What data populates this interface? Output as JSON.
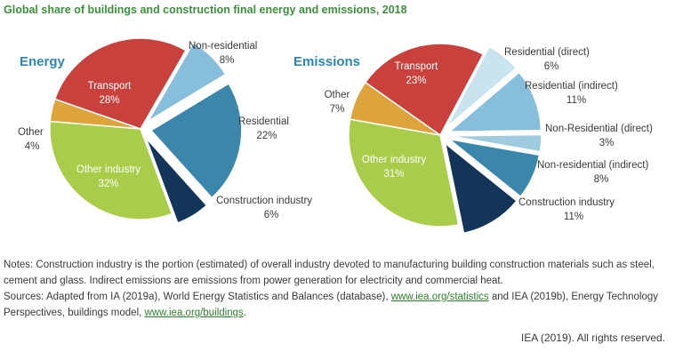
{
  "title": "Global share of buildings and construction final energy and emissions, 2018",
  "chart_data": [
    {
      "type": "pie",
      "title": "Energy",
      "slices": [
        {
          "label": "Non-residential",
          "value": 8,
          "pct": "8%",
          "color": "#86bedc",
          "exploded": true
        },
        {
          "label": "Residential",
          "value": 22,
          "pct": "22%",
          "color": "#3a87ab",
          "exploded": true
        },
        {
          "label": "Construction industry",
          "value": 6,
          "pct": "6%",
          "color": "#13355a",
          "exploded": true
        },
        {
          "label": "Other industry",
          "value": 32,
          "pct": "32%",
          "color": "#a9cc4a",
          "exploded": false
        },
        {
          "label": "Other",
          "value": 4,
          "pct": "4%",
          "color": "#dea43c",
          "exploded": false
        },
        {
          "label": "Transport",
          "value": 28,
          "pct": "28%",
          "color": "#c8413c",
          "exploded": false
        }
      ]
    },
    {
      "type": "pie",
      "title": "Emissions",
      "slices": [
        {
          "label": "Residential (direct)",
          "value": 6,
          "pct": "6%",
          "color": "#c9e3ef",
          "exploded": true
        },
        {
          "label": "Residential (indirect)",
          "value": 11,
          "pct": "11%",
          "color": "#86bedc",
          "exploded": true
        },
        {
          "label": "Non-Residential (direct)",
          "value": 3,
          "pct": "3%",
          "color": "#9fcbdf",
          "exploded": true
        },
        {
          "label": "Non-residential (indirect)",
          "value": 8,
          "pct": "8%",
          "color": "#3a87ab",
          "exploded": true
        },
        {
          "label": "Construction industry",
          "value": 11,
          "pct": "11%",
          "color": "#13355a",
          "exploded": true
        },
        {
          "label": "Other industry",
          "value": 31,
          "pct": "31%",
          "color": "#a9cc4a",
          "exploded": false
        },
        {
          "label": "Other",
          "value": 7,
          "pct": "7%",
          "color": "#dea43c",
          "exploded": false
        },
        {
          "label": "Transport",
          "value": 23,
          "pct": "23%",
          "color": "#c8413c",
          "exploded": false
        }
      ]
    }
  ],
  "notes": {
    "line1": "Notes: Construction industry is the portion (estimated) of overall industry devoted to manufacturing building construction materials such as steel, cement and glass. Indirect emissions are emissions from power generation for electricity and commercial heat.",
    "sources_prefix": "Sources: Adapted from IA (2019a), World Energy Statistics and Balances (database), ",
    "link1": "www.iea.org/statistics",
    "sources_mid": " and IEA (2019b), Energy Technology Perspectives, buildings model, ",
    "link2": "www.iea.org/buildings",
    "sources_end": "."
  },
  "credit": "IEA (2019). All rights reserved."
}
